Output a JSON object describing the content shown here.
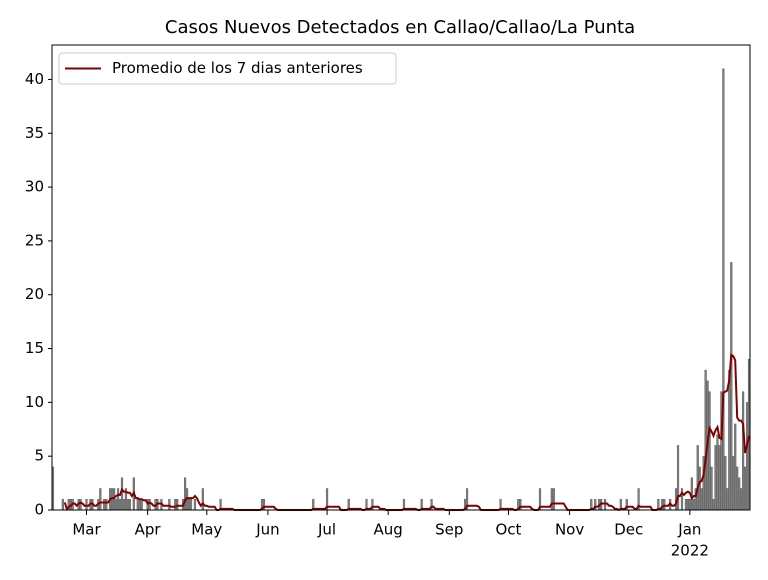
{
  "chart_data": {
    "type": "bar",
    "title": "Casos Nuevos Detectados en Callao/Callao/La Punta",
    "x": [
      0,
      1,
      2,
      3,
      4,
      5,
      6,
      7,
      8,
      9,
      10,
      11,
      12,
      13,
      14,
      15,
      16,
      17,
      18,
      19,
      20,
      21,
      22,
      23,
      24,
      25,
      26,
      27,
      28,
      29,
      30,
      31,
      32,
      33,
      34,
      35,
      36,
      37,
      38,
      39,
      40,
      41,
      42,
      43,
      44,
      45,
      46,
      47,
      48,
      49,
      50,
      51,
      52,
      53,
      54,
      55,
      56,
      57,
      58,
      59,
      60,
      61,
      62,
      63,
      64,
      65,
      66,
      67,
      68,
      69,
      70,
      71,
      72,
      73,
      74,
      75,
      76,
      77,
      78,
      79,
      80,
      81,
      82,
      83,
      84,
      85,
      86,
      87,
      88,
      89,
      90,
      91,
      92,
      93,
      94,
      95,
      96,
      97,
      98,
      99,
      100,
      101,
      102,
      103,
      104,
      105,
      106,
      107,
      108,
      109,
      110,
      111,
      112,
      113,
      114,
      115,
      116,
      117,
      118,
      119,
      120,
      121,
      122,
      123,
      124,
      125,
      126,
      127,
      128,
      129,
      130,
      131,
      132,
      133,
      134,
      135,
      136,
      137,
      138,
      139,
      140,
      141,
      142,
      143,
      144,
      145,
      146,
      147,
      148,
      149,
      150,
      151,
      152,
      153,
      154,
      155,
      156,
      157,
      158,
      159,
      160,
      161,
      162,
      163,
      164,
      165,
      166,
      167,
      168,
      169,
      170,
      171,
      172,
      173,
      174,
      175,
      176,
      177,
      178,
      179,
      180,
      181,
      182,
      183,
      184,
      185,
      186,
      187,
      188,
      189,
      190,
      191,
      192,
      193,
      194,
      195,
      196,
      197,
      198,
      199,
      200,
      201,
      202,
      203,
      204,
      205,
      206,
      207,
      208,
      209,
      210,
      211,
      212,
      213,
      214,
      215,
      216,
      217,
      218,
      219,
      220,
      221,
      222,
      223,
      224,
      225,
      226,
      227,
      228,
      229,
      230,
      231,
      232,
      233,
      234,
      235,
      236,
      237,
      238,
      239,
      240,
      241,
      242,
      243,
      244,
      245,
      246,
      247,
      248,
      249,
      250,
      251,
      252,
      253,
      254,
      255,
      256,
      257,
      258,
      259,
      260,
      261,
      262,
      263,
      264,
      265,
      266,
      267,
      268,
      269,
      270,
      271,
      272,
      273,
      274,
      275,
      276,
      277,
      278,
      279,
      280,
      281,
      282,
      283,
      284,
      285,
      286,
      287,
      288,
      289,
      290,
      291,
      292,
      293,
      294,
      295,
      296,
      297,
      298,
      299,
      300,
      301,
      302,
      303,
      304,
      305,
      306,
      307,
      308,
      309,
      310,
      311,
      312,
      313,
      314,
      315,
      316,
      317,
      318,
      319,
      320,
      321,
      322,
      323,
      324,
      325,
      326,
      327,
      328,
      329,
      330,
      331,
      332,
      333,
      334,
      335,
      336,
      337,
      338,
      339,
      340,
      341,
      342,
      343,
      344,
      345,
      346,
      347,
      348,
      349,
      350,
      351,
      352,
      353
    ],
    "series": [
      {
        "type": "bar",
        "color": "#7f7f7f",
        "values": [
          4,
          0,
          0,
          0,
          0,
          1,
          0,
          0,
          1,
          1,
          1,
          0,
          0,
          1,
          1,
          0,
          0,
          1,
          0,
          1,
          1,
          0,
          0,
          1,
          2,
          0,
          1,
          1,
          0,
          2,
          2,
          2,
          1,
          2,
          1,
          3,
          1,
          2,
          1,
          1,
          0,
          3,
          0,
          1,
          1,
          1,
          0,
          0,
          1,
          1,
          0,
          0,
          1,
          1,
          0,
          1,
          0,
          0,
          0,
          1,
          0,
          0,
          1,
          1,
          0,
          0,
          1,
          3,
          2,
          1,
          1,
          0,
          1,
          0,
          0,
          0,
          2,
          0,
          0,
          0,
          0,
          0,
          0,
          0,
          0,
          1,
          0,
          0,
          0,
          0,
          0,
          0,
          0,
          0,
          0,
          0,
          0,
          0,
          0,
          0,
          0,
          0,
          0,
          0,
          0,
          0,
          1,
          1,
          0,
          0,
          0,
          0,
          0,
          0,
          0,
          0,
          0,
          0,
          0,
          0,
          0,
          0,
          0,
          0,
          0,
          0,
          0,
          0,
          0,
          0,
          0,
          0,
          1,
          0,
          0,
          0,
          0,
          0,
          0,
          2,
          0,
          0,
          0,
          0,
          0,
          0,
          0,
          0,
          0,
          0,
          1,
          0,
          0,
          0,
          0,
          0,
          0,
          0,
          0,
          1,
          0,
          0,
          1,
          0,
          0,
          0,
          0,
          0,
          0,
          0,
          0,
          0,
          0,
          0,
          0,
          0,
          0,
          0,
          1,
          0,
          0,
          0,
          0,
          0,
          0,
          0,
          0,
          1,
          0,
          0,
          0,
          0,
          1,
          0,
          0,
          0,
          0,
          0,
          0,
          0,
          0,
          0,
          0,
          0,
          0,
          0,
          0,
          0,
          0,
          1,
          2,
          0,
          0,
          0,
          0,
          0,
          0,
          0,
          0,
          0,
          0,
          0,
          0,
          0,
          0,
          0,
          0,
          1,
          0,
          0,
          0,
          0,
          0,
          0,
          0,
          0,
          1,
          1,
          0,
          0,
          0,
          0,
          0,
          0,
          0,
          0,
          0,
          2,
          0,
          0,
          0,
          0,
          0,
          2,
          2,
          0,
          0,
          0,
          0,
          0,
          0,
          0,
          0,
          0,
          0,
          0,
          0,
          0,
          0,
          0,
          0,
          0,
          0,
          1,
          0,
          1,
          0,
          1,
          1,
          0,
          1,
          0,
          0,
          0,
          0,
          0,
          0,
          0,
          1,
          0,
          0,
          1,
          0,
          0,
          0,
          0,
          0,
          2,
          0,
          0,
          0,
          0,
          0,
          0,
          0,
          0,
          0,
          1,
          0,
          1,
          1,
          0,
          0,
          1,
          0,
          0,
          2,
          6,
          0,
          2,
          0,
          1,
          1,
          1,
          3,
          1,
          2,
          6,
          4,
          2,
          5,
          13,
          12,
          11,
          4,
          1,
          6,
          7,
          6,
          11,
          41,
          5,
          2,
          13,
          23,
          5,
          8,
          4,
          3,
          2,
          11,
          4,
          10,
          14
        ]
      },
      {
        "type": "line",
        "name": "Promedio de los 7 dias anteriores",
        "color": "#800000",
        "values": [
          null,
          null,
          null,
          null,
          null,
          null,
          0.7,
          0.1,
          0.3,
          0.4,
          0.6,
          0.6,
          0.4,
          0.6,
          0.7,
          0.6,
          0.4,
          0.4,
          0.4,
          0.6,
          0.6,
          0.4,
          0.4,
          0.6,
          0.7,
          0.7,
          0.7,
          0.7,
          0.7,
          1.0,
          1.1,
          1.1,
          1.3,
          1.4,
          1.4,
          1.9,
          1.7,
          1.7,
          1.6,
          1.6,
          1.3,
          1.6,
          1.1,
          1.1,
          1.0,
          1.0,
          0.9,
          0.9,
          0.6,
          0.7,
          0.6,
          0.4,
          0.4,
          0.6,
          0.6,
          0.6,
          0.4,
          0.4,
          0.4,
          0.4,
          0.3,
          0.3,
          0.3,
          0.4,
          0.4,
          0.4,
          0.4,
          0.9,
          1.1,
          1.1,
          1.1,
          1.1,
          1.3,
          1.1,
          0.7,
          0.4,
          0.6,
          0.4,
          0.4,
          0.3,
          0.3,
          0.3,
          0.3,
          0,
          0,
          0.1,
          0.1,
          0.1,
          0.1,
          0.1,
          0.1,
          0.1,
          0,
          0,
          0,
          0,
          0,
          0,
          0,
          0,
          0,
          0,
          0,
          0,
          0,
          0,
          0.1,
          0.3,
          0.3,
          0.3,
          0.3,
          0.3,
          0.3,
          0.1,
          0,
          0,
          0,
          0,
          0,
          0,
          0,
          0,
          0,
          0,
          0,
          0,
          0,
          0,
          0,
          0,
          0,
          0,
          0.1,
          0.1,
          0.1,
          0.1,
          0.1,
          0.1,
          0.1,
          0.3,
          0.3,
          0.3,
          0.3,
          0.3,
          0.3,
          0.3,
          0,
          0,
          0,
          0,
          0.1,
          0.1,
          0.1,
          0.1,
          0.1,
          0.1,
          0.1,
          0,
          0,
          0.1,
          0.1,
          0.1,
          0.3,
          0.3,
          0.3,
          0.3,
          0.1,
          0.1,
          0.1,
          0,
          0,
          0,
          0,
          0,
          0,
          0,
          0,
          0,
          0.1,
          0.1,
          0.1,
          0.1,
          0.1,
          0.1,
          0.1,
          0,
          0,
          0.1,
          0.1,
          0.1,
          0.1,
          0.1,
          0.3,
          0.3,
          0.1,
          0.1,
          0.1,
          0.1,
          0.1,
          0,
          0,
          0,
          0,
          0,
          0,
          0,
          0,
          0,
          0,
          0.1,
          0.4,
          0.4,
          0.4,
          0.4,
          0.4,
          0.4,
          0.3,
          0,
          0,
          0,
          0,
          0,
          0,
          0,
          0,
          0,
          0,
          0.1,
          0.1,
          0.1,
          0.1,
          0.1,
          0.1,
          0.1,
          0,
          0,
          0.1,
          0.3,
          0.3,
          0.3,
          0.3,
          0.3,
          0.3,
          0.1,
          0,
          0,
          0,
          0.3,
          0.3,
          0.3,
          0.3,
          0.3,
          0.3,
          0.6,
          0.6,
          0.6,
          0.6,
          0.6,
          0.6,
          0.6,
          0.3,
          0,
          0,
          0,
          0,
          0,
          0,
          0,
          0,
          0,
          0,
          0,
          0,
          0.1,
          0.1,
          0.3,
          0.3,
          0.4,
          0.6,
          0.6,
          0.6,
          0.6,
          0.4,
          0.4,
          0.3,
          0.1,
          0.1,
          0,
          0.1,
          0.1,
          0.1,
          0.3,
          0.3,
          0.3,
          0.3,
          0.1,
          0.1,
          0.4,
          0.3,
          0.3,
          0.3,
          0.3,
          0.3,
          0.3,
          0,
          0,
          0,
          0.1,
          0.1,
          0.3,
          0.4,
          0.4,
          0.4,
          0.6,
          0.4,
          0.4,
          0.6,
          1.3,
          1.3,
          1.6,
          1.4,
          1.6,
          1.7,
          1.6,
          1.1,
          1.3,
          1.3,
          2.1,
          2.6,
          2.7,
          3.3,
          4.7,
          6.3,
          7.6,
          7.3,
          6.9,
          7.4,
          7.7,
          6.7,
          6.6,
          10.9,
          11.0,
          11.1,
          12.1,
          14.4,
          14.3,
          13.9,
          8.6,
          8.3,
          8.3,
          8.0,
          5.3,
          6.0,
          6.9
        ]
      }
    ],
    "xlim": [
      -0.5,
      353.5
    ],
    "xticks": [
      {
        "value": 17,
        "label": "Mar"
      },
      {
        "value": 48,
        "label": "Apr"
      },
      {
        "value": 78,
        "label": "May"
      },
      {
        "value": 109,
        "label": "Jun"
      },
      {
        "value": 139,
        "label": "Jul"
      },
      {
        "value": 170,
        "label": "Aug"
      },
      {
        "value": 201,
        "label": "Sep"
      },
      {
        "value": 231,
        "label": "Oct"
      },
      {
        "value": 262,
        "label": "Nov"
      },
      {
        "value": 292,
        "label": "Dec"
      },
      {
        "value": 323,
        "label": "Jan"
      }
    ],
    "x_year_label": "2022",
    "ylim": [
      0,
      43.2
    ],
    "yticks": [
      0,
      5,
      10,
      15,
      20,
      25,
      30,
      35,
      40
    ],
    "grid": false,
    "legend": "upper left"
  }
}
